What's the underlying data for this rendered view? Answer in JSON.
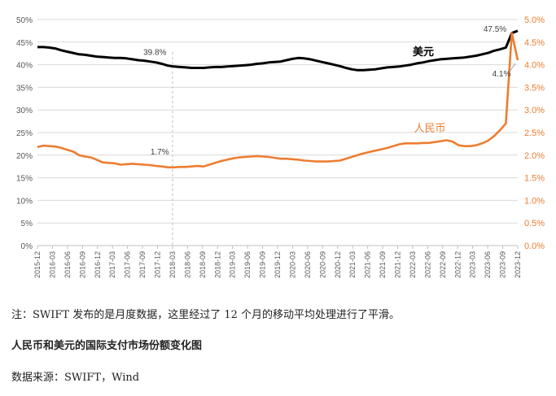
{
  "chart_data": {
    "type": "line",
    "title": "人民币和美元的国际支付市场份额变化图",
    "left_axis": {
      "ticks": [
        "0%",
        "5%",
        "10%",
        "15%",
        "20%",
        "25%",
        "30%",
        "35%",
        "40%",
        "45%",
        "50%"
      ],
      "range": [
        0,
        50
      ]
    },
    "right_axis": {
      "ticks": [
        "0.0%",
        "0.5%",
        "1.0%",
        "1.5%",
        "2.0%",
        "2.5%",
        "3.0%",
        "3.5%",
        "4.0%",
        "4.5%",
        "5.0%"
      ],
      "range": [
        0,
        5
      ]
    },
    "x_labels": [
      "2015-12",
      "2016-03",
      "2016-06",
      "2016-09",
      "2016-12",
      "2017-03",
      "2017-06",
      "2017-09",
      "2017-12",
      "2018-03",
      "2018-06",
      "2018-09",
      "2018-12",
      "2019-03",
      "2019-06",
      "2019-09",
      "2019-12",
      "2020-03",
      "2020-06",
      "2020-09",
      "2020-12",
      "2021-03",
      "2021-06",
      "2021-09",
      "2021-12",
      "2022-03",
      "2022-06",
      "2022-09",
      "2022-12",
      "2023-03",
      "2023-06",
      "2023-09",
      "2023-12"
    ],
    "grid": true,
    "reference_line": {
      "x": "2018-03",
      "style": "dashed"
    },
    "series": [
      {
        "name": "美元",
        "axis": "left",
        "color": "#000000",
        "values": [
          43.9,
          43.9,
          43.8,
          43.6,
          43.2,
          42.9,
          42.6,
          42.3,
          42.2,
          42.0,
          41.8,
          41.7,
          41.6,
          41.5,
          41.5,
          41.4,
          41.2,
          41.0,
          40.9,
          40.7,
          40.5,
          40.2,
          39.8,
          39.6,
          39.5,
          39.4,
          39.3,
          39.3,
          39.3,
          39.4,
          39.5,
          39.5,
          39.6,
          39.7,
          39.8,
          39.9,
          40.0,
          40.2,
          40.3,
          40.5,
          40.6,
          40.7,
          41.0,
          41.3,
          41.5,
          41.4,
          41.2,
          40.9,
          40.6,
          40.3,
          40.0,
          39.7,
          39.3,
          39.0,
          38.8,
          38.8,
          38.9,
          39.0,
          39.2,
          39.4,
          39.5,
          39.6,
          39.8,
          40.0,
          40.3,
          40.5,
          40.8,
          41.0,
          41.2,
          41.3,
          41.4,
          41.5,
          41.6,
          41.8,
          42.0,
          42.3,
          42.6,
          43.1,
          43.4,
          43.8,
          47.0,
          47.5
        ]
      },
      {
        "name": "人民币",
        "axis": "right",
        "color": "#ED7D31",
        "values": [
          2.18,
          2.21,
          2.2,
          2.19,
          2.16,
          2.12,
          2.08,
          2.0,
          1.97,
          1.95,
          1.9,
          1.84,
          1.83,
          1.82,
          1.79,
          1.8,
          1.81,
          1.8,
          1.79,
          1.78,
          1.76,
          1.75,
          1.73,
          1.73,
          1.74,
          1.74,
          1.75,
          1.76,
          1.75,
          1.79,
          1.83,
          1.87,
          1.9,
          1.93,
          1.95,
          1.96,
          1.97,
          1.98,
          1.97,
          1.96,
          1.94,
          1.92,
          1.92,
          1.91,
          1.9,
          1.88,
          1.87,
          1.86,
          1.86,
          1.86,
          1.87,
          1.88,
          1.92,
          1.96,
          2.0,
          2.04,
          2.07,
          2.1,
          2.13,
          2.16,
          2.2,
          2.24,
          2.26,
          2.26,
          2.26,
          2.27,
          2.27,
          2.29,
          2.31,
          2.33,
          2.3,
          2.22,
          2.2,
          2.2,
          2.22,
          2.26,
          2.32,
          2.42,
          2.55,
          2.7,
          4.7,
          4.1
        ]
      }
    ],
    "annotations": [
      {
        "text": "47.5%",
        "series": "美元",
        "index": 81
      },
      {
        "text": "39.8%",
        "series": "美元",
        "index": 22
      },
      {
        "text": "1.7%",
        "series": "人民币",
        "index": 22
      },
      {
        "text": "4.1%",
        "series": "人民币",
        "index": 81
      }
    ],
    "series_labels": [
      {
        "text": "美元",
        "series": "美元"
      },
      {
        "text": "人民币",
        "series": "人民币"
      }
    ]
  },
  "captions": {
    "note": "注：SWIFT 发布的是月度数据，这里经过了 12 个月的移动平均处理进行了平滑。",
    "title": "人民币和美元的国际支付市场份额变化图",
    "source": "数据来源：SWIFT，Wind"
  }
}
